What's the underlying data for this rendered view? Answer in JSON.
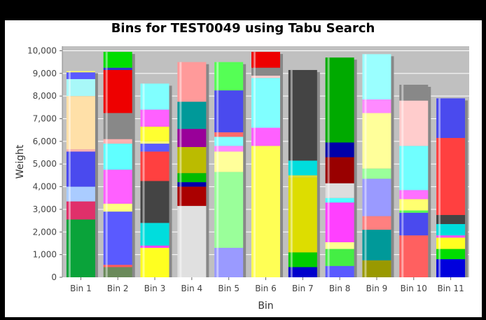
{
  "chart_data": {
    "type": "bar",
    "stacked": true,
    "title": "Bins for TEST0049 using Tabu Search",
    "xlabel": "Bin",
    "ylabel": "Weight",
    "ylim": [
      0,
      10200
    ],
    "yticks": [
      "0",
      "1,000",
      "2,000",
      "3,000",
      "4,000",
      "5,000",
      "6,000",
      "7,000",
      "8,000",
      "9,000",
      "10,000"
    ],
    "ytick_values": [
      0,
      1000,
      2000,
      3000,
      4000,
      5000,
      6000,
      7000,
      8000,
      9000,
      10000
    ],
    "grid": true,
    "legend": "none",
    "categories": [
      "Bin 1",
      "Bin 2",
      "Bin 3",
      "Bin 4",
      "Bin 5",
      "Bin 6",
      "Bin 7",
      "Bin 8",
      "Bin 9",
      "Bin 10",
      "Bin 11"
    ],
    "bins": [
      {
        "segments": [
          [
            2550,
            "#0aa33a"
          ],
          [
            800,
            "#e0306a"
          ],
          [
            650,
            "#aaccff"
          ],
          [
            1550,
            "#4a4aee"
          ],
          [
            100,
            "#ffb0b0"
          ],
          [
            2350,
            "#ffe0a8"
          ],
          [
            750,
            "#a8f8f8"
          ],
          [
            300,
            "#5a5aff"
          ],
          [
            50,
            "#ffff60"
          ]
        ]
      },
      {
        "segments": [
          [
            450,
            "#6a8a5a"
          ],
          [
            100,
            "#ff5a5a"
          ],
          [
            2350,
            "#5a5aff"
          ],
          [
            350,
            "#ffff80"
          ],
          [
            1500,
            "#ff60ff"
          ],
          [
            1150,
            "#60ffff"
          ],
          [
            200,
            "#ffb0b0"
          ],
          [
            1150,
            "#888888"
          ],
          [
            1900,
            "#ee0000"
          ],
          [
            100,
            "#3030cc"
          ],
          [
            700,
            "#00dd00"
          ]
        ]
      },
      {
        "segments": [
          [
            1300,
            "#ffff20"
          ],
          [
            100,
            "#ff40ff"
          ],
          [
            1000,
            "#00dddd"
          ],
          [
            1850,
            "#444444"
          ],
          [
            1300,
            "#ff4040"
          ],
          [
            350,
            "#5a5aff"
          ],
          [
            100,
            "#ffff80"
          ],
          [
            650,
            "#ffff30"
          ],
          [
            750,
            "#ff60ff"
          ],
          [
            1150,
            "#80ffff"
          ]
        ]
      },
      {
        "segments": [
          [
            3150,
            "#e0e0e0"
          ],
          [
            850,
            "#aa0000"
          ],
          [
            200,
            "#0000aa"
          ],
          [
            400,
            "#00bb00"
          ],
          [
            1150,
            "#bbbb00"
          ],
          [
            800,
            "#990099"
          ],
          [
            1200,
            "#009999"
          ],
          [
            1750,
            "#ff9a9a"
          ]
        ]
      },
      {
        "segments": [
          [
            1300,
            "#9a9aff"
          ],
          [
            3350,
            "#9aff9a"
          ],
          [
            900,
            "#ffff9a"
          ],
          [
            250,
            "#ff8aff"
          ],
          [
            400,
            "#80ffff"
          ],
          [
            200,
            "#ff6a6a"
          ],
          [
            1850,
            "#4a4aee"
          ],
          [
            1250,
            "#55ff55"
          ]
        ]
      },
      {
        "segments": [
          [
            5800,
            "#ffff55"
          ],
          [
            800,
            "#ff60ff"
          ],
          [
            2200,
            "#80ffff"
          ],
          [
            100,
            "#ffcccc"
          ],
          [
            350,
            "#888888"
          ],
          [
            700,
            "#ee0000"
          ]
        ]
      },
      {
        "segments": [
          [
            450,
            "#0000cc"
          ],
          [
            650,
            "#00cc00"
          ],
          [
            3300,
            "#dddd00"
          ],
          [
            100,
            "#dddd30"
          ],
          [
            650,
            "#00dddd"
          ],
          [
            4000,
            "#444444"
          ]
        ]
      },
      {
        "segments": [
          [
            500,
            "#5a5aff"
          ],
          [
            750,
            "#44ee44"
          ],
          [
            300,
            "#ffff90"
          ],
          [
            1750,
            "#ff40ff"
          ],
          [
            200,
            "#50ffff"
          ],
          [
            650,
            "#dddddd"
          ],
          [
            1150,
            "#990000"
          ],
          [
            650,
            "#0000aa"
          ],
          [
            3750,
            "#00aa00"
          ]
        ]
      },
      {
        "segments": [
          [
            750,
            "#999900"
          ],
          [
            1350,
            "#009999"
          ],
          [
            600,
            "#ff8080"
          ],
          [
            1650,
            "#9a9aff"
          ],
          [
            450,
            "#9aff9a"
          ],
          [
            2450,
            "#ffff9a"
          ],
          [
            600,
            "#ff8aff"
          ],
          [
            2000,
            "#9affff"
          ]
        ]
      },
      {
        "segments": [
          [
            1850,
            "#ff6060"
          ],
          [
            1000,
            "#4a4aee"
          ],
          [
            100,
            "#55ff55"
          ],
          [
            500,
            "#ffff70"
          ],
          [
            400,
            "#ff70ff"
          ],
          [
            1950,
            "#70ffff"
          ],
          [
            2000,
            "#ffcccc"
          ],
          [
            700,
            "#888888"
          ]
        ]
      },
      {
        "segments": [
          [
            800,
            "#0000dd"
          ],
          [
            450,
            "#00dd00"
          ],
          [
            500,
            "#ffff20"
          ],
          [
            100,
            "#ff50ff"
          ],
          [
            500,
            "#00dddd"
          ],
          [
            400,
            "#444444"
          ],
          [
            3400,
            "#ff4040"
          ],
          [
            1750,
            "#4a4aee"
          ]
        ]
      }
    ]
  }
}
